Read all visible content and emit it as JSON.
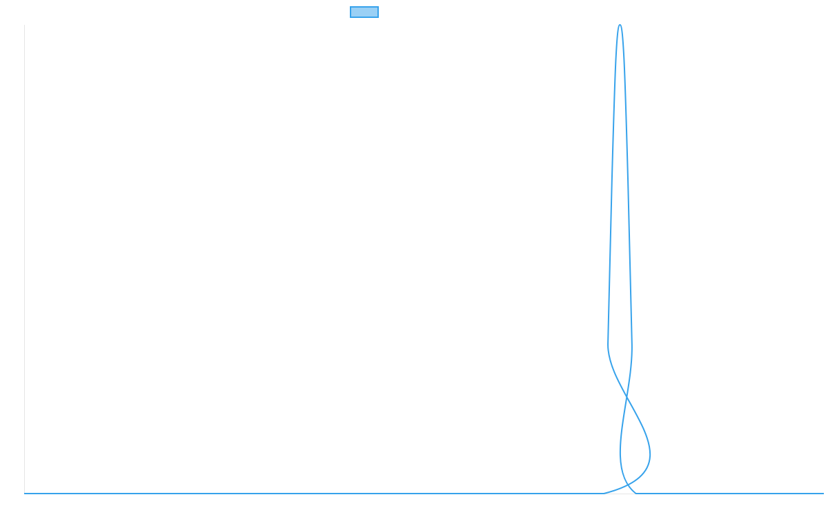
{
  "chart_data": {
    "type": "line",
    "title": "",
    "xlabel": "",
    "ylabel": "",
    "grid": false,
    "legend_position": "top",
    "x": [
      0,
      72.5,
      73.0,
      73.5,
      74.0,
      74.5,
      75.0,
      75.5,
      76.0,
      76.5,
      100
    ],
    "xlim": [
      0,
      100
    ],
    "ylim": [
      0,
      1
    ],
    "series": [
      {
        "name": "",
        "color": "#36a2eb",
        "fill_color": "#9ad0f5",
        "values": [
          0,
          0,
          0.32,
          0.67,
          0.93,
          1.0,
          0.93,
          0.67,
          0.32,
          0,
          0
        ]
      }
    ]
  }
}
